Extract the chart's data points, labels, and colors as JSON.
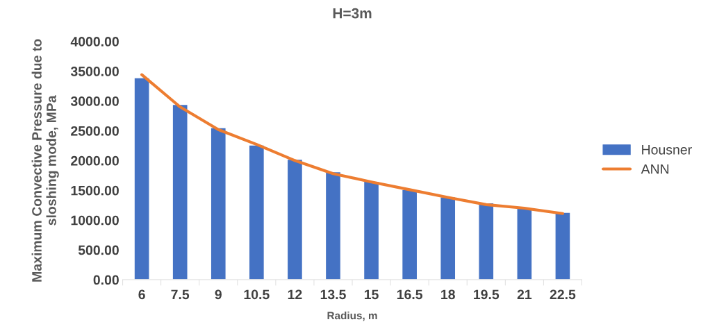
{
  "chart_data": {
    "type": "bar",
    "title": "H=3m",
    "xlabel": "Radius, m",
    "ylabel": "Maximum Convective Pressure due to\nsloshing mode, MPa",
    "categories": [
      "6",
      "7.5",
      "9",
      "10.5",
      "12",
      "13.5",
      "15",
      "16.5",
      "18",
      "19.5",
      "21",
      "22.5"
    ],
    "series": [
      {
        "name": "Housner",
        "color": "#4472c4",
        "values": [
          3390,
          2940,
          2550,
          2260,
          2020,
          1810,
          1650,
          1510,
          1390,
          1290,
          1200,
          1130
        ]
      },
      {
        "name": "ANN",
        "type": "line",
        "color": "#ed7d31",
        "values": [
          3440,
          2900,
          2520,
          2270,
          2000,
          1780,
          1640,
          1510,
          1380,
          1260,
          1200,
          1110
        ]
      }
    ],
    "ylim": [
      0,
      4000
    ],
    "yticks": [
      {
        "value": 0,
        "label": "0.00"
      },
      {
        "value": 500,
        "label": "500.00"
      },
      {
        "value": 1000,
        "label": "1000.00"
      },
      {
        "value": 1500,
        "label": "1500.00"
      },
      {
        "value": 2000,
        "label": "2000.00"
      },
      {
        "value": 2500,
        "label": "2500.00"
      },
      {
        "value": 3000,
        "label": "3000.00"
      },
      {
        "value": 3500,
        "label": "3500.00"
      },
      {
        "value": 4000,
        "label": "4000.00"
      }
    ],
    "grid": false,
    "legend": "right",
    "marker": "none",
    "line_style": "solid"
  }
}
